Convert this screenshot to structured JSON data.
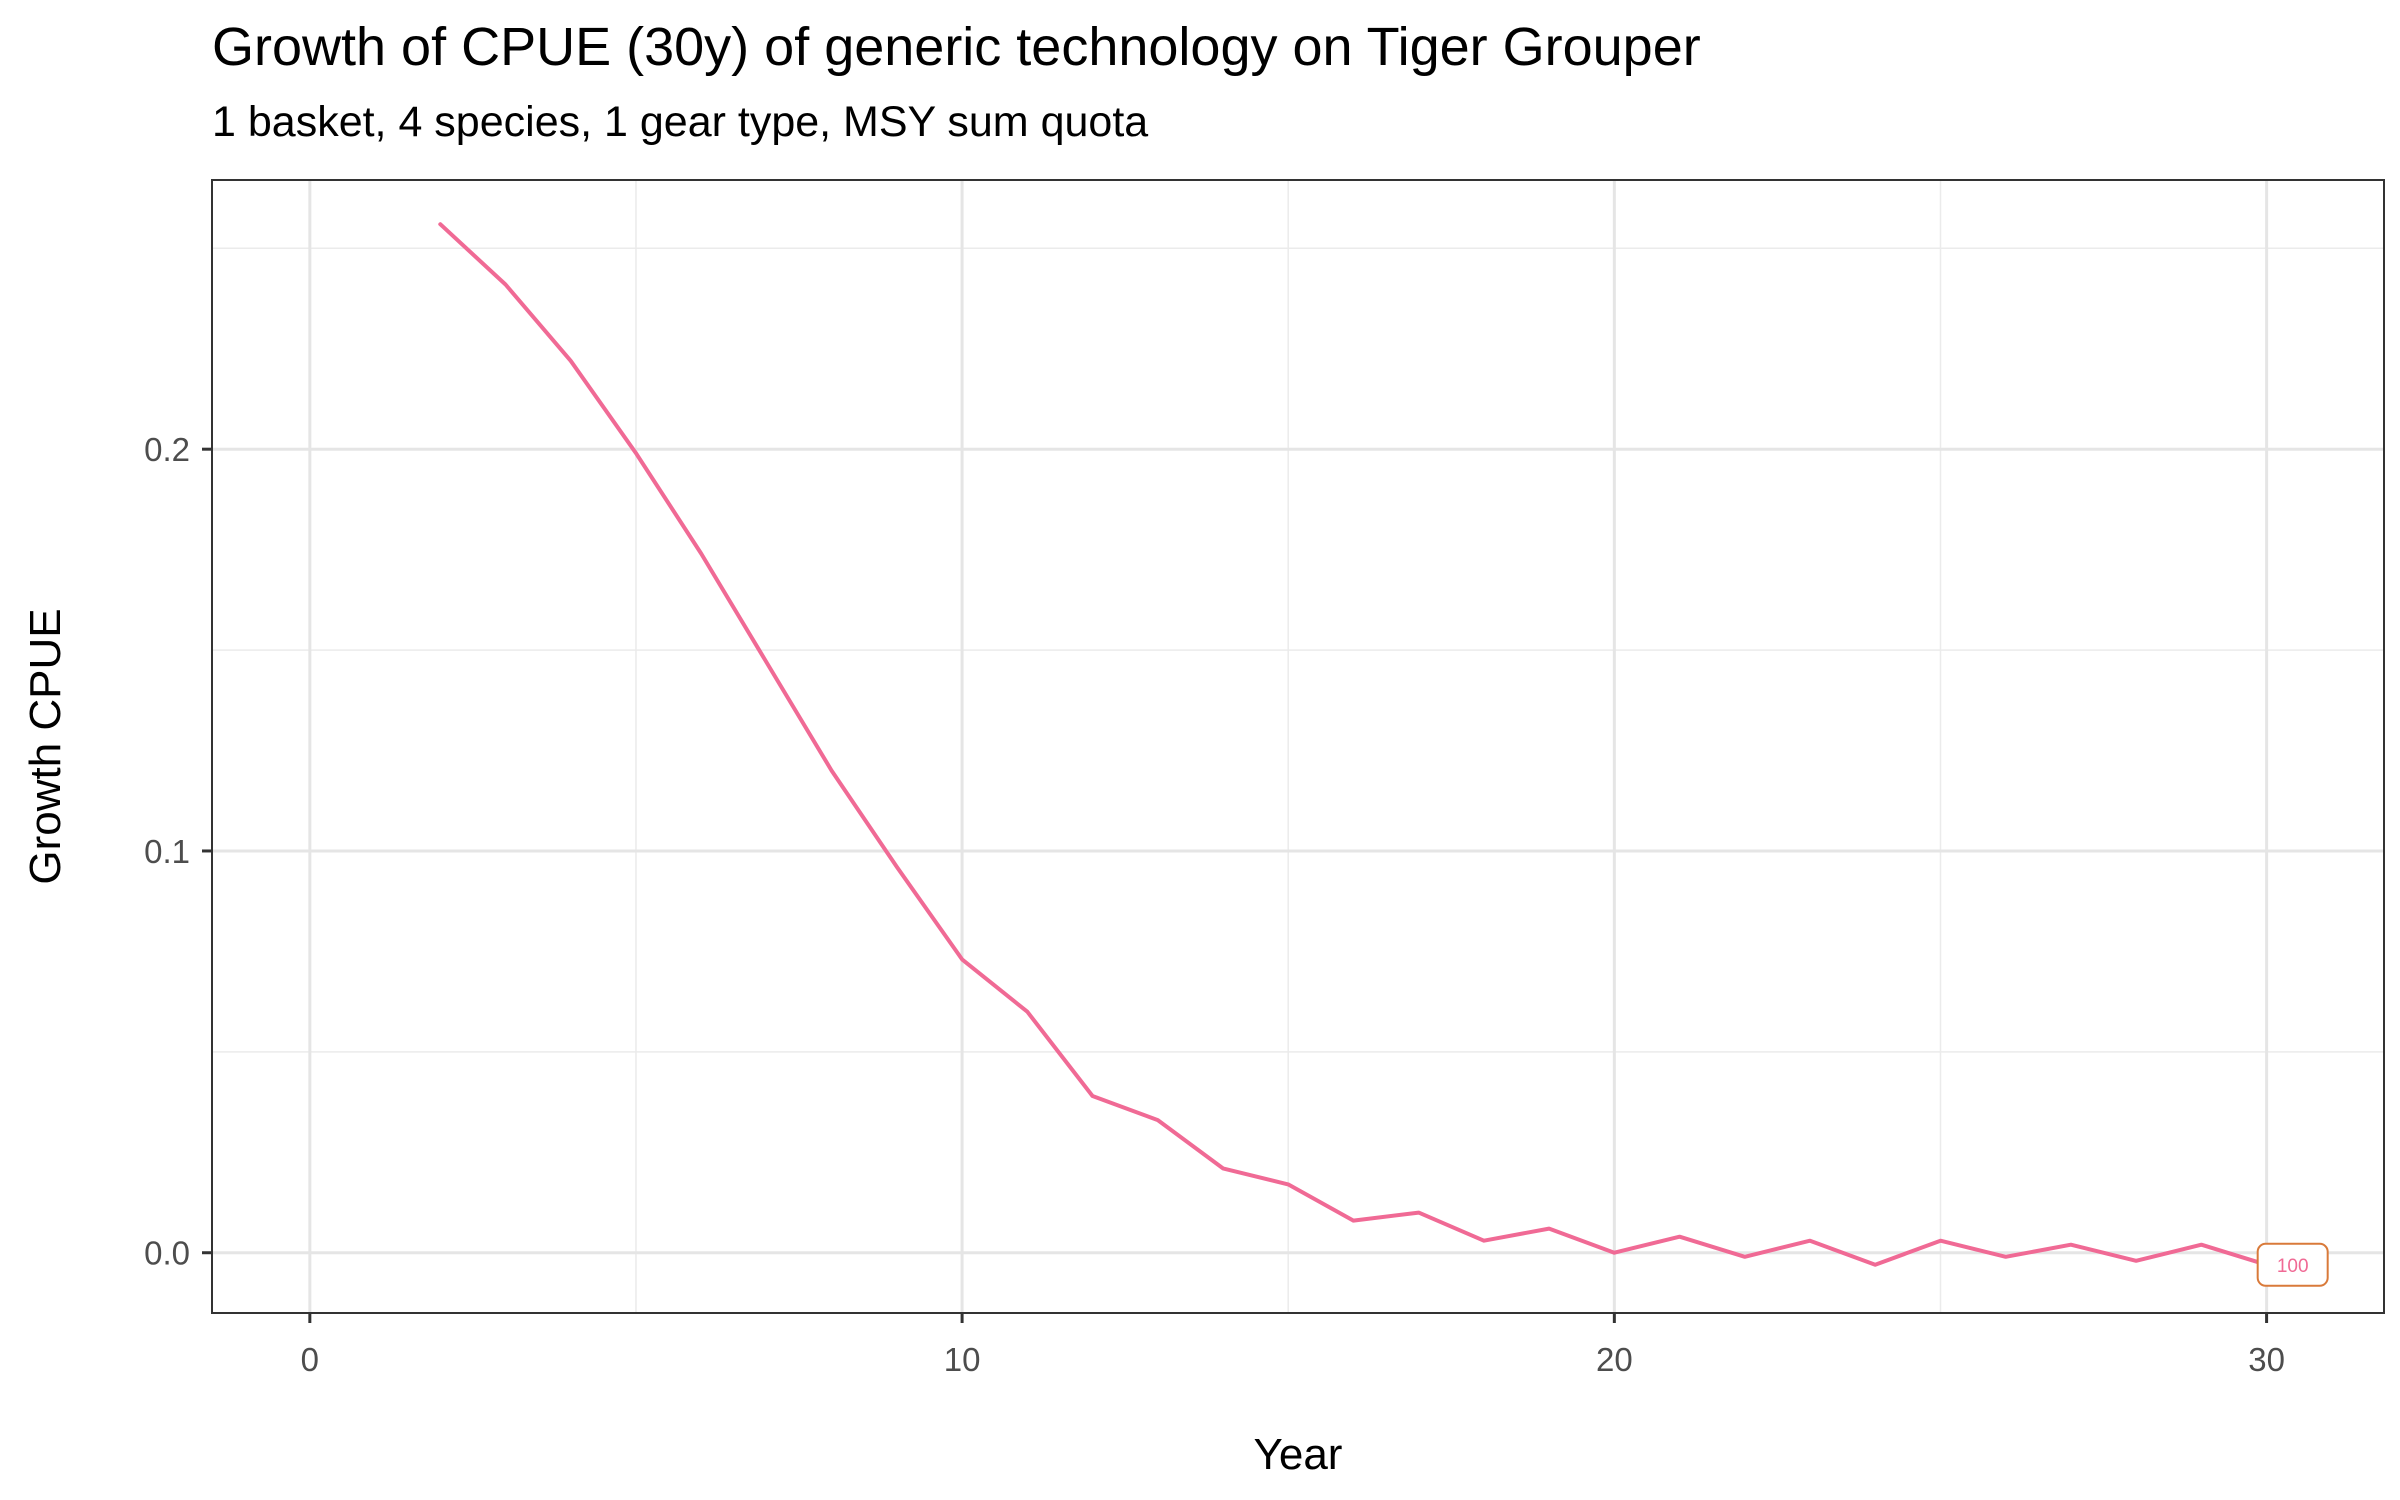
{
  "chart_data": {
    "type": "line",
    "title": "Growth of CPUE (30y) of generic technology on Tiger Grouper",
    "subtitle": "1 basket, 4 species, 1 gear type, MSY sum quota",
    "xlabel": "Year",
    "ylabel": "Growth CPUE",
    "xlim": [
      -1.5,
      31.8
    ],
    "ylim": [
      -0.015,
      0.267
    ],
    "x_ticks": [
      0,
      10,
      20,
      30
    ],
    "x_tick_labels": [
      "0",
      "10",
      "20",
      "30"
    ],
    "y_ticks": [
      0.0,
      0.1,
      0.2
    ],
    "y_tick_labels": [
      "0.0",
      "0.1",
      "0.2"
    ],
    "y_minor_grid": [
      0.05,
      0.15,
      0.25
    ],
    "x_minor_grid": [
      5,
      15,
      25
    ],
    "grid": true,
    "series": [
      {
        "color": "#f06a95",
        "x": [
          2,
          3,
          4,
          5,
          6,
          7,
          8,
          9,
          10,
          11,
          12,
          13,
          14,
          15,
          16,
          17,
          18,
          19,
          20,
          21,
          22,
          23,
          24,
          25,
          26,
          27,
          28,
          29,
          30
        ],
        "y": [
          0.256,
          0.241,
          0.222,
          0.199,
          0.174,
          0.147,
          0.12,
          0.096,
          0.073,
          0.06,
          0.039,
          0.033,
          0.021,
          0.017,
          0.008,
          0.01,
          0.003,
          0.006,
          0.0,
          0.004,
          -0.001,
          0.003,
          -0.003,
          0.003,
          -0.001,
          0.002,
          -0.002,
          0.002,
          -0.003
        ]
      }
    ],
    "end_label": {
      "text": "100",
      "x": 30.4,
      "y": -0.003,
      "color": "#d97a3a",
      "text_color": "#f06a95"
    }
  }
}
